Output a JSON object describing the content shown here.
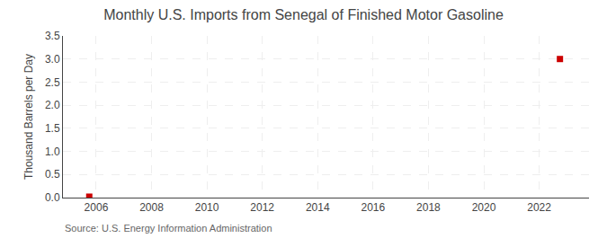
{
  "chart_data": {
    "type": "scatter",
    "title": "Monthly U.S. Imports from Senegal of Finished Motor Gasoline",
    "ylabel": "Thousand Barrels per Day",
    "annotations": [
      "Source: U.S. Energy Information Administration"
    ],
    "x": [
      2005.75,
      2022.75
    ],
    "values": [
      0.02,
      3.0
    ],
    "color": "#cc0000",
    "marker": "square",
    "xlim": [
      2004.8,
      2023.8
    ],
    "xticks": [
      2006,
      2008,
      2010,
      2012,
      2014,
      2016,
      2018,
      2020,
      2022
    ],
    "ylim": [
      0.0,
      3.5
    ],
    "yticks": [
      {
        "value": 0.0,
        "label": "0.0"
      },
      0.5,
      {
        "value": 1.0,
        "label": "1.0"
      },
      1.5,
      {
        "value": 2.0,
        "label": "2.0"
      },
      2.5,
      {
        "value": 3.0,
        "label": "3.0"
      },
      3.5
    ],
    "grid": true
  }
}
